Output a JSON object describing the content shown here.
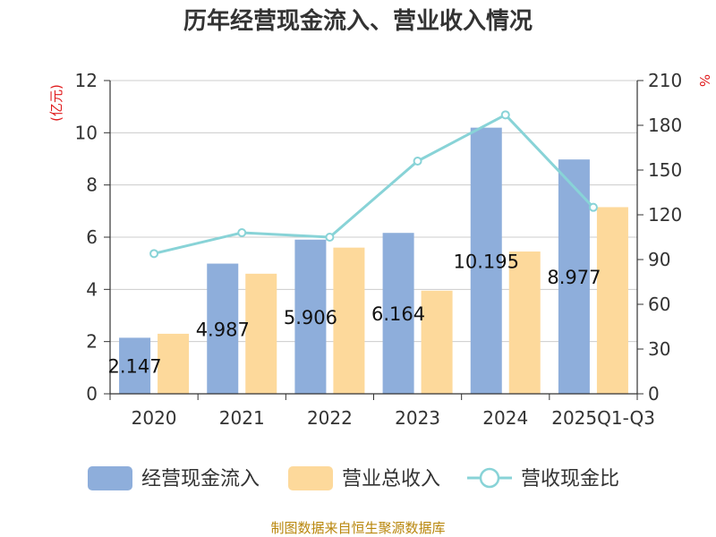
{
  "chart_data": {
    "type": "bar",
    "title": "历年经营现金流入、营业收入情况",
    "categories": [
      "2020",
      "2021",
      "2022",
      "2023",
      "2024",
      "2025Q1-Q3"
    ],
    "series": [
      {
        "name": "经营现金流入",
        "kind": "bar",
        "axis": "left",
        "color": "#8eaedb",
        "values": [
          2.147,
          4.987,
          5.906,
          6.164,
          10.195,
          8.977
        ],
        "labels": [
          "2.147",
          "4.987",
          "5.906",
          "6.164",
          "10.195",
          "8.977"
        ]
      },
      {
        "name": "营业总收入",
        "kind": "bar",
        "axis": "left",
        "color": "#fdd99b",
        "values": [
          2.3,
          4.6,
          5.6,
          3.95,
          5.45,
          7.15
        ]
      },
      {
        "name": "营收现金比",
        "kind": "line",
        "axis": "right",
        "color": "#88d3d7",
        "values": [
          94,
          108,
          105,
          156,
          187,
          125
        ]
      }
    ],
    "y_left": {
      "unit": "(亿元)",
      "min": 0,
      "max": 12,
      "ticks": [
        0,
        2,
        4,
        6,
        8,
        10,
        12
      ]
    },
    "y_right": {
      "unit": "%",
      "min": 0,
      "max": 210,
      "ticks": [
        0,
        30,
        60,
        90,
        120,
        150,
        180,
        210
      ]
    },
    "grid": true,
    "legend_position": "bottom"
  },
  "source_text": "制图数据来自恒生聚源数据库"
}
